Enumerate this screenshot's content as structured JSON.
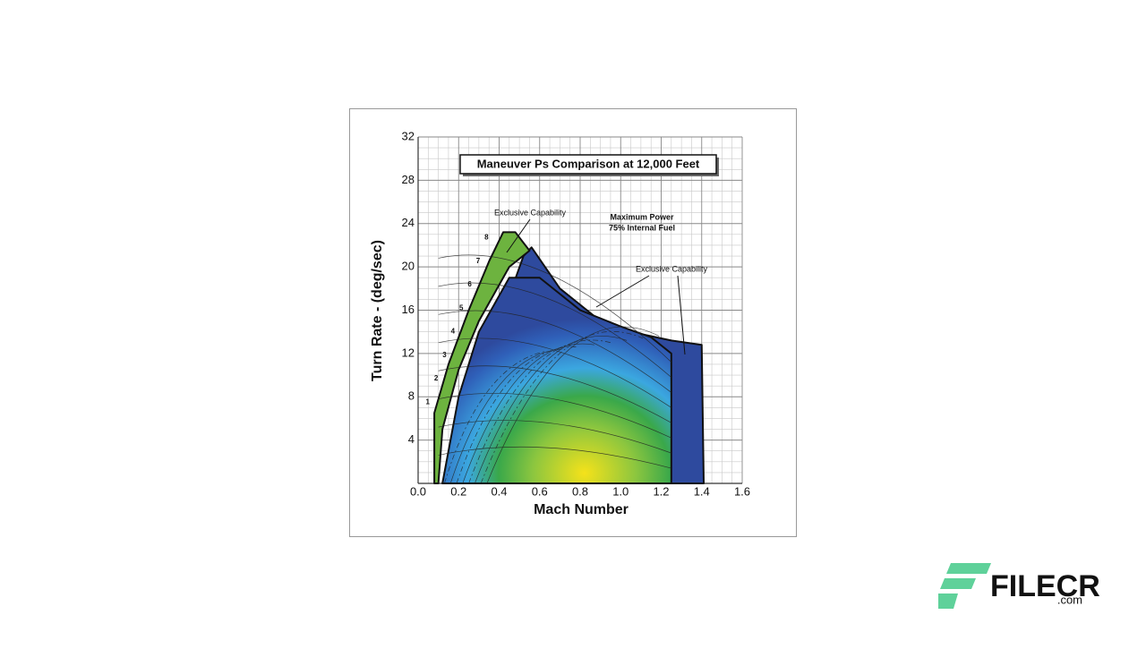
{
  "chart_data": {
    "type": "envelope",
    "title": "Maneuver Ps Comparison at 12,000 Feet",
    "x_label": "Mach Number",
    "y_label": "Turn Rate - (deg/sec)",
    "xlim": [
      0,
      1.6
    ],
    "ylim": [
      0,
      32
    ],
    "xticks": [
      {
        "value": 0,
        "label": "0.0"
      },
      0.2,
      0.4,
      0.6,
      0.8,
      {
        "value": 1,
        "label": "1.0"
      },
      1.2,
      1.4,
      1.6
    ],
    "yticks": [
      4,
      8,
      12,
      16,
      20,
      24,
      28,
      32
    ],
    "grid": true,
    "series": [
      {
        "color": "#6db33f",
        "x": [
          0.08,
          0.08,
          0.15,
          0.25,
          0.35,
          0.42,
          0.48,
          0.55,
          0.45,
          0.3,
          0.2,
          0.12,
          0.1
        ],
        "y": [
          0,
          6.5,
          11,
          16,
          20.5,
          23.2,
          23.2,
          21.5,
          20,
          15,
          10.5,
          5,
          0
        ]
      },
      {
        "color": "#2e4a9e",
        "x": [
          0.52,
          0.56,
          0.7,
          0.9,
          1.1,
          1.25,
          1.4,
          1.41,
          1.25,
          1.25,
          0.12
        ],
        "y": [
          21,
          21.8,
          18,
          15,
          13.8,
          13.2,
          12.8,
          0,
          0,
          0,
          0
        ]
      },
      {
        "color": "#3ba7e0",
        "x": [
          0.12,
          0.2,
          0.3,
          0.45,
          0.6,
          0.8,
          1.0,
          1.15,
          1.25,
          1.25
        ],
        "y": [
          0,
          8,
          14,
          19,
          19,
          16,
          14.5,
          13.5,
          12,
          0
        ]
      }
    ],
    "annotations": [
      "Exclusive Capability",
      "Maximum Power",
      "75% Internal Fuel",
      "Exclusive Capability"
    ],
    "g_labels": [
      1,
      2,
      3,
      4,
      5,
      6,
      7,
      8
    ]
  },
  "watermark": {
    "brand": "FILECR",
    "suffix": ".com"
  }
}
